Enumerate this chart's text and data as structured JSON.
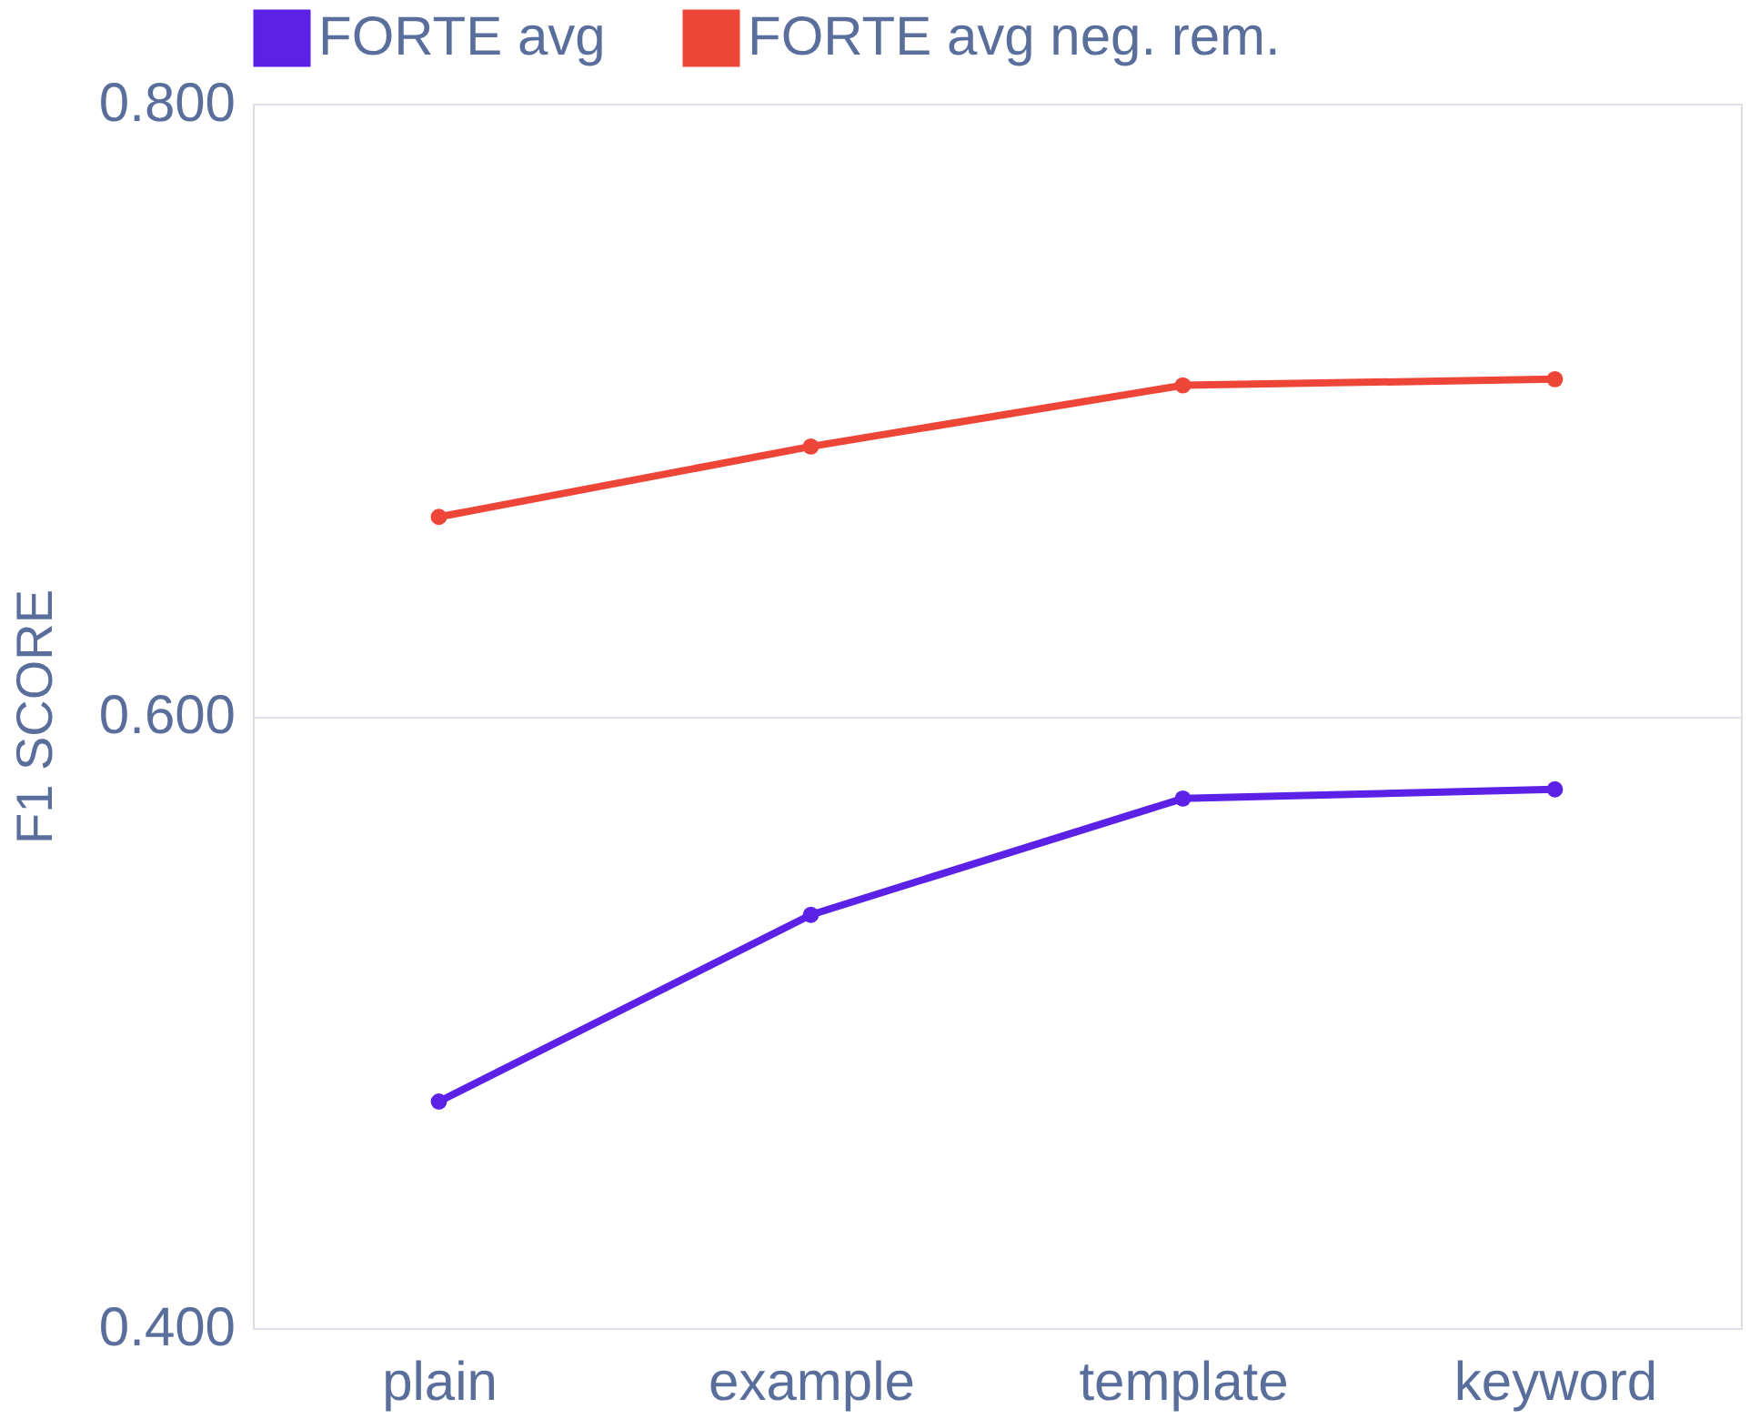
{
  "chart_data": {
    "type": "line",
    "categories": [
      "plain",
      "example",
      "template",
      "keyword"
    ],
    "series": [
      {
        "name": "FORTE avg",
        "color": "#5b21e6",
        "values": [
          0.474,
          0.535,
          0.573,
          0.576
        ]
      },
      {
        "name": "FORTE avg neg. rem.",
        "color": "#ee4539",
        "values": [
          0.665,
          0.688,
          0.708,
          0.71
        ]
      }
    ],
    "ylabel": "F1 SCORE",
    "ylim": [
      0.4,
      0.8
    ],
    "yticks": [
      {
        "value": 0.4,
        "label": "0.400"
      },
      {
        "value": 0.6,
        "label": "0.600"
      },
      {
        "value": 0.8,
        "label": "0.800"
      }
    ],
    "grid": "y",
    "legend": "top",
    "marker": "circle",
    "line_style": "solid"
  }
}
